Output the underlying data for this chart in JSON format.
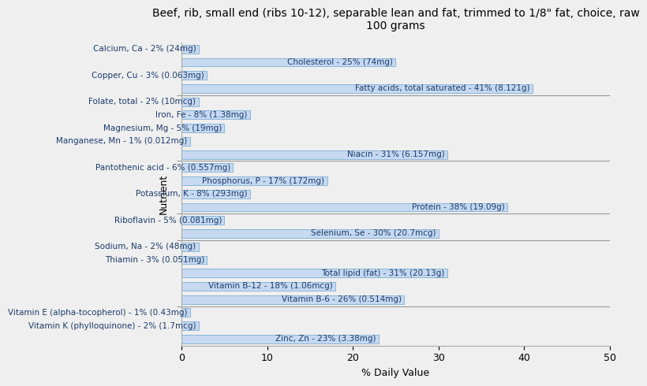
{
  "title": "Beef, rib, small end (ribs 10-12), separable lean and fat, trimmed to 1/8\" fat, choice, raw\n100 grams",
  "xlabel": "% Daily Value",
  "ylabel": "Nutrient",
  "xlim": [
    0,
    50
  ],
  "bar_color": "#c6d9f1",
  "bar_edge_color": "#7bafd4",
  "background_color": "#efefef",
  "nutrients": [
    {
      "label": "Calcium, Ca - 2% (24mg)",
      "value": 2
    },
    {
      "label": "Cholesterol - 25% (74mg)",
      "value": 25
    },
    {
      "label": "Copper, Cu - 3% (0.063mg)",
      "value": 3
    },
    {
      "label": "Fatty acids, total saturated - 41% (8.121g)",
      "value": 41
    },
    {
      "label": "Folate, total - 2% (10mcg)",
      "value": 2
    },
    {
      "label": "Iron, Fe - 8% (1.38mg)",
      "value": 8
    },
    {
      "label": "Magnesium, Mg - 5% (19mg)",
      "value": 5
    },
    {
      "label": "Manganese, Mn - 1% (0.012mg)",
      "value": 1
    },
    {
      "label": "Niacin - 31% (6.157mg)",
      "value": 31
    },
    {
      "label": "Pantothenic acid - 6% (0.557mg)",
      "value": 6
    },
    {
      "label": "Phosphorus, P - 17% (172mg)",
      "value": 17
    },
    {
      "label": "Potassium, K - 8% (293mg)",
      "value": 8
    },
    {
      "label": "Protein - 38% (19.09g)",
      "value": 38
    },
    {
      "label": "Riboflavin - 5% (0.081mg)",
      "value": 5
    },
    {
      "label": "Selenium, Se - 30% (20.7mcg)",
      "value": 30
    },
    {
      "label": "Sodium, Na - 2% (48mg)",
      "value": 2
    },
    {
      "label": "Thiamin - 3% (0.051mg)",
      "value": 3
    },
    {
      "label": "Total lipid (fat) - 31% (20.13g)",
      "value": 31
    },
    {
      "label": "Vitamin B-12 - 18% (1.06mcg)",
      "value": 18
    },
    {
      "label": "Vitamin B-6 - 26% (0.514mg)",
      "value": 26
    },
    {
      "label": "Vitamin E (alpha-tocopherol) - 1% (0.43mg)",
      "value": 1
    },
    {
      "label": "Vitamin K (phylloquinone) - 2% (1.7mcg)",
      "value": 2
    },
    {
      "label": "Zinc, Zn - 23% (3.38mg)",
      "value": 23
    }
  ],
  "separator_positions_orig": [
    3,
    8,
    12,
    14,
    19
  ],
  "title_fontsize": 10,
  "label_fontsize": 7.5,
  "tick_fontsize": 9
}
